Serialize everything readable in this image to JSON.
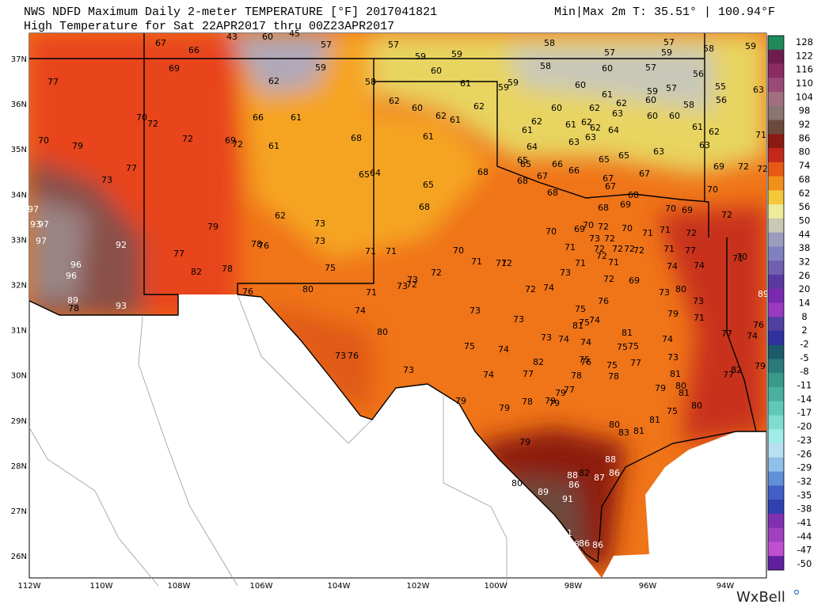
{
  "header": {
    "title": "NWS NDFD Maximum Daily 2-meter TEMPERATURE [°F]  2017041821",
    "minmax": "Min|Max 2m T: 35.51°  |  100.94°F",
    "subtitle": "High Temperature for Sat 22APR2017 thru 00Z23APR2017"
  },
  "map": {
    "lon_labels": [
      "112W",
      "110W",
      "108W",
      "106W",
      "104W",
      "102W",
      "100W",
      "98W",
      "96W",
      "94W"
    ],
    "lat_labels": [
      "37N",
      "36N",
      "35N",
      "34N",
      "33N",
      "32N",
      "31N",
      "30N",
      "29N",
      "28N",
      "27N",
      "26N"
    ],
    "station_values": [
      77,
      67,
      66,
      43,
      60,
      45,
      57,
      57,
      58,
      57,
      58,
      59,
      69,
      62,
      59,
      59,
      59,
      60,
      58,
      61,
      62,
      60,
      62,
      61,
      62,
      59,
      59,
      58,
      60,
      60,
      57,
      59,
      57,
      56,
      55,
      56,
      63,
      59,
      57,
      60,
      58,
      60,
      62,
      62,
      61,
      63,
      60,
      60,
      70,
      72,
      70,
      79,
      72,
      69,
      72,
      66,
      61,
      61,
      68,
      61,
      62,
      61,
      61,
      62,
      62,
      64,
      63,
      63,
      61,
      62,
      63,
      63,
      71,
      77,
      73,
      64,
      65,
      65,
      67,
      66,
      66,
      65,
      65,
      67,
      69,
      72,
      72,
      65,
      64,
      68,
      68,
      65,
      68,
      67,
      67,
      68,
      68,
      69,
      70,
      70,
      69,
      72,
      97,
      93,
      97,
      97,
      62,
      79,
      73,
      68,
      92,
      96,
      96,
      77,
      82,
      78,
      78,
      76,
      73,
      71,
      71,
      70,
      75,
      70,
      69,
      70,
      72,
      70,
      71,
      71,
      72,
      71,
      73,
      72,
      72,
      72,
      72,
      72,
      72,
      71,
      77,
      71,
      70,
      71,
      71,
      72,
      72,
      71,
      71,
      73,
      74,
      74,
      73,
      73,
      72,
      72,
      69,
      80,
      76,
      71,
      72,
      74,
      73,
      80,
      89,
      89,
      93,
      78,
      74,
      75,
      76,
      73,
      73,
      79,
      71,
      73,
      75,
      74,
      81,
      76,
      80,
      77,
      81,
      74,
      73,
      74,
      74,
      75,
      74,
      75,
      75,
      74,
      73,
      76,
      75,
      76,
      75,
      77,
      73,
      82,
      79,
      73,
      74,
      77,
      78,
      78,
      81,
      82,
      77,
      77,
      79,
      79,
      80,
      81,
      79,
      79,
      78,
      79,
      79,
      75,
      80,
      81,
      80,
      83,
      79,
      81,
      88,
      80,
      86,
      88,
      82,
      87,
      86,
      89,
      91,
      91,
      89,
      88,
      86,
      86
    ]
  },
  "colorbar": {
    "labels": [
      "128",
      "122",
      "116",
      "110",
      "104",
      "98",
      "92",
      "86",
      "80",
      "74",
      "68",
      "62",
      "56",
      "50",
      "44",
      "38",
      "32",
      "26",
      "20",
      "14",
      "8",
      "2",
      "-2",
      "-5",
      "-8",
      "-11",
      "-14",
      "-17",
      "-20",
      "-23",
      "-26",
      "-29",
      "-32",
      "-35",
      "-38",
      "-41",
      "-44",
      "-47",
      "-50"
    ],
    "colors": [
      "#1f8a5c",
      "#6e1d4e",
      "#8a2b63",
      "#9a4a78",
      "#a07080",
      "#8c7470",
      "#6b4a3c",
      "#8b1a12",
      "#c4281a",
      "#e85a14",
      "#f2901c",
      "#f5c83a",
      "#eeec9a",
      "#c8c8b4",
      "#9c9cc0",
      "#8080c0",
      "#7060b0",
      "#5a3aa0",
      "#7a2ab0",
      "#9a3ac0",
      "#5040a0",
      "#3030a0",
      "#1a5a6a",
      "#2a7a7a",
      "#3a9a8a",
      "#4ab0a0",
      "#60c8b8",
      "#80dcd0",
      "#a0ece8",
      "#b8e0f0",
      "#90c0e8",
      "#6090d8",
      "#4060c8",
      "#3040b0",
      "#8030b0",
      "#a040c0",
      "#c050d0",
      "#6020a0"
    ]
  },
  "watermark": "WxBell"
}
